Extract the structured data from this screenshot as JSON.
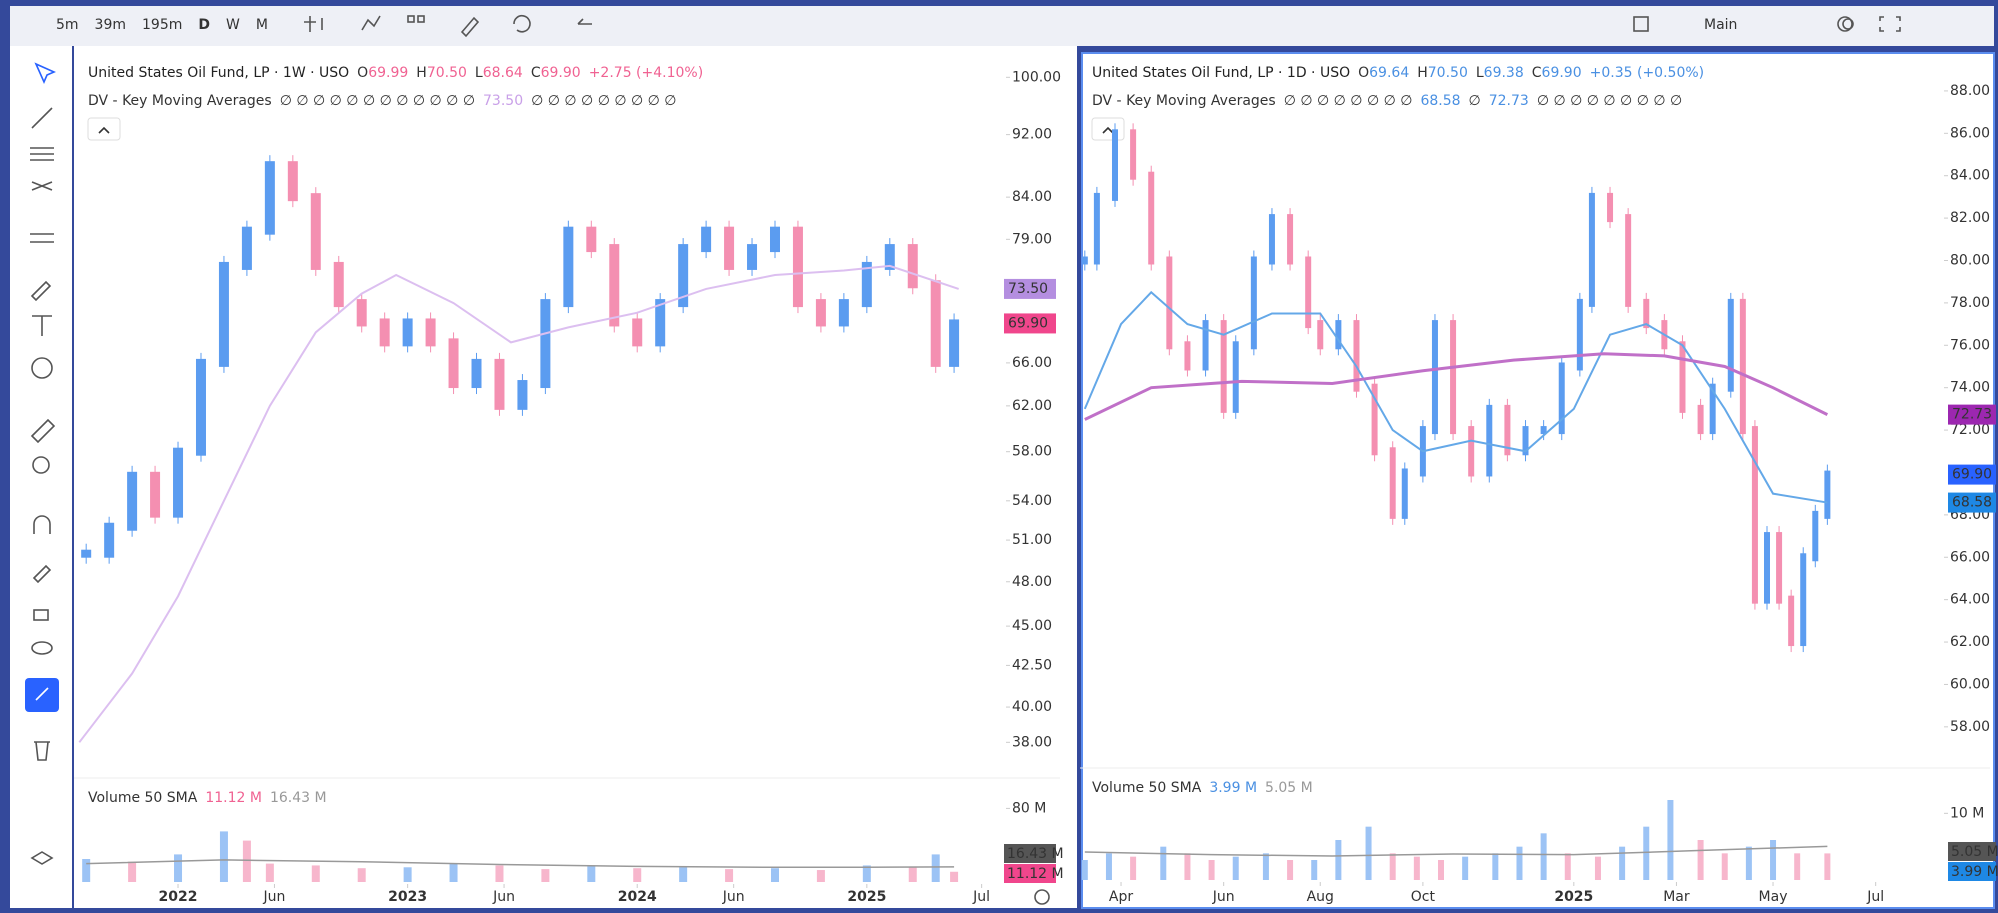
{
  "toolbar": {
    "intervals": [
      "5m",
      "39m",
      "195m",
      "D",
      "W",
      "M"
    ],
    "layout": "Main"
  },
  "chart_data": [
    {
      "type": "candlestick",
      "title": "United States Oil Fund, LP · 1W · USO",
      "ohlc": [
        {
          "key": "O",
          "value": "69.99"
        },
        {
          "key": "H",
          "value": "70.50"
        },
        {
          "key": "L",
          "value": "68.64"
        },
        {
          "key": "C",
          "value": "69.90"
        }
      ],
      "change": "+2.75 (+4.10%)",
      "indicator": "DV - Key Moving Averages",
      "indicator_values": [
        "∅ ∅ ∅ ∅ ∅ ∅ ∅ ∅ ∅ ∅ ∅ ∅",
        "73.50",
        "∅ ∅ ∅ ∅ ∅ ∅ ∅ ∅ ∅"
      ],
      "log": true,
      "ylim": [
        36.5,
        103
      ],
      "yticks": [
        {
          "value": 100,
          "label": "100.00"
        },
        {
          "value": 92,
          "label": "92.00"
        },
        {
          "value": 84,
          "label": "84.00"
        },
        {
          "value": 79,
          "label": "79.00"
        },
        {
          "value": 66,
          "label": "66.00"
        },
        {
          "value": 62,
          "label": "62.00"
        },
        {
          "value": 58,
          "label": "58.00"
        },
        {
          "value": 54,
          "label": "54.00"
        },
        {
          "value": 51,
          "label": "51.00"
        },
        {
          "value": 48,
          "label": "48.00"
        },
        {
          "value": 45,
          "label": "45.00"
        },
        {
          "value": 42.5,
          "label": "42.50"
        },
        {
          "value": 40,
          "label": "40.00"
        },
        {
          "value": 38,
          "label": "38.00"
        }
      ],
      "price_tags": [
        {
          "value": 73.5,
          "label": "73.50",
          "color": "#b48ee0"
        },
        {
          "value": 69.9,
          "label": "69.90",
          "color": "#f0468c"
        }
      ],
      "xlim": [
        2021.56,
        2025.58
      ],
      "xticks": [
        2022,
        {
          "value": 2022.42,
          "label": "Jun"
        },
        2023,
        {
          "value": 2023.42,
          "label": "Jun"
        },
        2024,
        {
          "value": 2024.42,
          "label": "Jun"
        },
        2025,
        {
          "value": 2025.5,
          "label": "Jul"
        }
      ],
      "x": [
        2021.6,
        2021.7,
        2021.8,
        2021.9,
        2022.0,
        2022.1,
        2022.2,
        2022.3,
        2022.4,
        2022.5,
        2022.6,
        2022.7,
        2022.8,
        2022.9,
        2023.0,
        2023.1,
        2023.2,
        2023.3,
        2023.4,
        2023.5,
        2023.6,
        2023.7,
        2023.8,
        2023.9,
        2024.0,
        2024.1,
        2024.2,
        2024.3,
        2024.4,
        2024.5,
        2024.6,
        2024.7,
        2024.8,
        2024.9,
        2025.0,
        2025.1,
        2025.2,
        2025.3,
        2025.38
      ],
      "values": [
        50,
        52,
        56,
        53,
        58,
        66,
        76,
        80,
        88,
        84,
        76,
        72,
        70,
        68,
        70,
        68,
        64,
        66,
        62,
        64,
        72,
        80,
        78,
        70,
        68,
        72,
        78,
        80,
        76,
        78,
        80,
        72,
        70,
        72,
        76,
        78,
        74,
        66,
        69.9
      ],
      "up_color": "#5b9cf0",
      "down_color": "#f48fb1",
      "ma": [
        {
          "color": "#dcbff0",
          "x": [
            2021.57,
            2021.8,
            2022.0,
            2022.2,
            2022.4,
            2022.6,
            2022.8,
            2022.95,
            2023.2,
            2023.45,
            2023.7,
            2024.0,
            2024.3,
            2024.6,
            2024.9,
            2025.1,
            2025.4
          ],
          "values": [
            38,
            42,
            47,
            54,
            62,
            69,
            73,
            75,
            72,
            68,
            69.5,
            71,
            73.5,
            75,
            75.5,
            76,
            73.5
          ]
        }
      ],
      "volume": {
        "label": "Volume 50 SMA",
        "sma_labels": [
          {
            "text": "11.12 M",
            "color": "#f06292"
          },
          {
            "text": "16.43 M",
            "color": "#999"
          }
        ],
        "ylim": [
          0,
          100
        ],
        "yticks": [
          {
            "value": 80,
            "label": "80 M"
          }
        ],
        "tags": [
          {
            "value": 16.43,
            "label": "16.43 M",
            "color": "#555"
          },
          {
            "value": 11.12,
            "label": "11.12 M",
            "color": "#f0468c"
          }
        ],
        "x": [
          2021.6,
          2021.8,
          2022.0,
          2022.2,
          2022.3,
          2022.4,
          2022.6,
          2022.8,
          2023.0,
          2023.2,
          2023.4,
          2023.6,
          2023.8,
          2024.0,
          2024.2,
          2024.4,
          2024.6,
          2024.8,
          2025.0,
          2025.2,
          2025.3,
          2025.38
        ],
        "values": [
          25,
          22,
          30,
          55,
          45,
          20,
          18,
          15,
          16,
          20,
          18,
          14,
          17,
          15,
          16,
          14,
          15,
          13,
          18,
          16,
          30,
          11.12
        ],
        "sma_x": [
          2021.6,
          2022.2,
          2022.8,
          2023.4,
          2024.0,
          2024.6,
          2025.0,
          2025.38
        ],
        "sma_values": [
          20,
          24,
          22,
          19,
          17,
          16,
          16,
          16.43
        ]
      }
    },
    {
      "type": "candlestick",
      "title": "United States Oil Fund, LP · 1D · USO",
      "ohlc": [
        {
          "key": "O",
          "value": "69.64"
        },
        {
          "key": "H",
          "value": "70.50"
        },
        {
          "key": "L",
          "value": "69.38"
        },
        {
          "key": "C",
          "value": "69.90"
        }
      ],
      "change": "+0.35 (+0.50%)",
      "indicator": "DV - Key Moving Averages",
      "indicator_values": [
        "∅ ∅ ∅ ∅ ∅ ∅ ∅ ∅",
        "68.58",
        "∅",
        "72.73",
        "∅ ∅ ∅ ∅ ∅ ∅ ∅ ∅ ∅"
      ],
      "log": false,
      "ylim": [
        56.2,
        89.6
      ],
      "yticks": [
        {
          "value": 88,
          "label": "88.00"
        },
        {
          "value": 86,
          "label": "86.00"
        },
        {
          "value": 84,
          "label": "84.00"
        },
        {
          "value": 82,
          "label": "82.00"
        },
        {
          "value": 80,
          "label": "80.00"
        },
        {
          "value": 78,
          "label": "78.00"
        },
        {
          "value": 76,
          "label": "76.00"
        },
        {
          "value": 74,
          "label": "74.00"
        },
        {
          "value": 72,
          "label": "72.00"
        },
        {
          "value": 68,
          "label": "68.00"
        },
        {
          "value": 66,
          "label": "66.00"
        },
        {
          "value": 64,
          "label": "64.00"
        },
        {
          "value": 62,
          "label": "62.00"
        },
        {
          "value": 60,
          "label": "60.00"
        },
        {
          "value": 58,
          "label": "58.00"
        }
      ],
      "price_tags": [
        {
          "value": 72.73,
          "label": "72.73",
          "color": "#9c27b0"
        },
        {
          "value": 69.9,
          "label": "69.90",
          "color": "#2962ff"
        },
        {
          "value": 68.58,
          "label": "68.58",
          "color": "#1e88e5"
        }
      ],
      "xlim": [
        2024.187,
        2025.59
      ],
      "xticks": [
        {
          "value": 2024.25,
          "label": "Apr"
        },
        {
          "value": 2024.42,
          "label": "Jun"
        },
        {
          "value": 2024.58,
          "label": "Aug"
        },
        {
          "value": 2024.75,
          "label": "Oct"
        },
        2025,
        {
          "value": 2025.17,
          "label": "Mar"
        },
        {
          "value": 2025.33,
          "label": "May"
        },
        {
          "value": 2025.5,
          "label": "Jul"
        }
      ],
      "x": [
        2024.19,
        2024.21,
        2024.24,
        2024.27,
        2024.3,
        2024.33,
        2024.36,
        2024.39,
        2024.42,
        2024.44,
        2024.47,
        2024.5,
        2024.53,
        2024.56,
        2024.58,
        2024.61,
        2024.64,
        2024.67,
        2024.7,
        2024.72,
        2024.75,
        2024.77,
        2024.8,
        2024.83,
        2024.86,
        2024.89,
        2024.92,
        2024.95,
        2024.98,
        2025.01,
        2025.03,
        2025.06,
        2025.09,
        2025.12,
        2025.15,
        2025.18,
        2025.21,
        2025.23,
        2025.26,
        2025.28,
        2025.3,
        2025.32,
        2025.34,
        2025.36,
        2025.38,
        2025.4,
        2025.42
      ],
      "values": [
        80,
        83,
        86,
        84,
        80,
        76,
        75,
        77,
        73,
        76,
        80,
        82,
        80,
        77,
        76,
        77,
        74,
        71,
        68,
        70,
        72,
        77,
        72,
        70,
        73,
        71,
        72,
        72,
        75,
        78,
        83,
        82,
        78,
        77,
        76,
        73,
        72,
        74,
        78,
        72,
        64,
        67,
        64,
        62,
        66,
        68,
        69.9
      ],
      "up_color": "#5b9cf0",
      "down_color": "#f48fb1",
      "ma": [
        {
          "color": "#64a8e8",
          "x": [
            2024.19,
            2024.25,
            2024.3,
            2024.36,
            2024.42,
            2024.5,
            2024.58,
            2024.64,
            2024.7,
            2024.75,
            2024.83,
            2024.92,
            2025.0,
            2025.06,
            2025.12,
            2025.18,
            2025.25,
            2025.33,
            2025.42
          ],
          "values": [
            73,
            77,
            78.5,
            77,
            76.5,
            77.5,
            77.5,
            75,
            72,
            71,
            71.5,
            71,
            73,
            76.5,
            77,
            76,
            73,
            69,
            68.58
          ]
        },
        {
          "color": "#c070c8",
          "x": [
            2024.19,
            2024.3,
            2024.45,
            2024.6,
            2024.75,
            2024.9,
            2025.05,
            2025.15,
            2025.25,
            2025.33,
            2025.42
          ],
          "values": [
            72.5,
            74,
            74.3,
            74.2,
            74.8,
            75.3,
            75.6,
            75.5,
            75,
            74,
            72.73
          ]
        }
      ],
      "volume": {
        "label": "Volume 50 SMA",
        "sma_labels": [
          {
            "text": "3.99 M",
            "color": "#4a90e2"
          },
          {
            "text": "5.05 M",
            "color": "#999"
          }
        ],
        "ylim": [
          0,
          15
        ],
        "yticks": [
          {
            "value": 10,
            "label": "10 M"
          }
        ],
        "tags": [
          {
            "value": 5.05,
            "label": "5.05 M",
            "color": "#555"
          },
          {
            "value": 3.99,
            "label": "3.99 M",
            "color": "#1e88e5"
          }
        ],
        "x": [
          2024.19,
          2024.23,
          2024.27,
          2024.32,
          2024.36,
          2024.4,
          2024.44,
          2024.49,
          2024.53,
          2024.57,
          2024.61,
          2024.66,
          2024.7,
          2024.74,
          2024.78,
          2024.82,
          2024.87,
          2024.91,
          2024.95,
          2024.99,
          2025.04,
          2025.08,
          2025.12,
          2025.16,
          2025.21,
          2025.25,
          2025.29,
          2025.33,
          2025.37,
          2025.42
        ],
        "values": [
          3,
          4,
          3.5,
          5,
          4,
          3,
          3.5,
          4,
          3,
          3,
          6,
          8,
          4,
          3.5,
          3,
          3.5,
          4,
          5,
          7,
          4,
          3.5,
          5,
          8,
          12,
          6,
          4,
          5,
          6,
          4,
          3.99
        ],
        "sma_x": [
          2024.19,
          2024.4,
          2024.6,
          2024.8,
          2025.0,
          2025.2,
          2025.42
        ],
        "sma_values": [
          4.2,
          3.8,
          3.6,
          3.9,
          3.8,
          4.4,
          5.05
        ]
      }
    }
  ]
}
